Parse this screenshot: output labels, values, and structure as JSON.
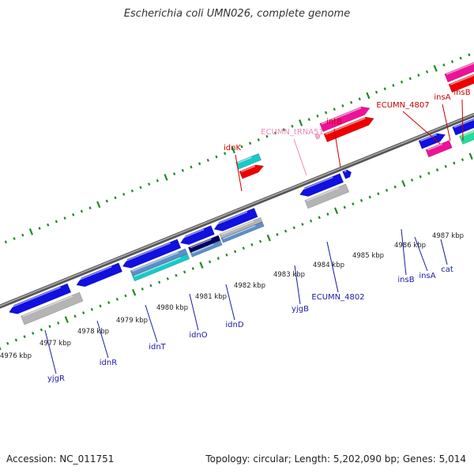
{
  "title": "Escherichia coli UMN026, complete genome",
  "footer": {
    "accession": "Accession: NC_011751",
    "summary": "Topology: circular; Length: 5,202,090 bp; Genes: 5,014"
  },
  "colors": {
    "backbone": "#7a7a7a",
    "dotted_track": "#1f8a1f",
    "forward_label": "#cc0000",
    "reverse_label": "#1a1aa6",
    "trna_label": "#ee88bb",
    "cds_blue": "#1010e0",
    "cds_gray": "#b4b4b4",
    "cds_cyan": "#18c8c8",
    "cds_red": "#ee0000",
    "cds_magenta": "#ee1199",
    "cds_mint": "#22dd99",
    "cds_navy": "#000060",
    "cds_steel": "#5b8fc8"
  },
  "kbp_ticks": [
    "4976 kbp",
    "4977 kbp",
    "4978 kbp",
    "4979 kbp",
    "4980 kbp",
    "4981 kbp",
    "4982 kbp",
    "4983 kbp",
    "4984 kbp",
    "4985 kbp",
    "4986 kbp",
    "4987 kbp"
  ],
  "forward_genes": [
    "idnK",
    "ECUMN_tRNA51",
    "intB",
    "ECUMN_4807",
    "insA",
    "insB"
  ],
  "reverse_genes": [
    "yjgR",
    "idnR",
    "idnT",
    "idnO",
    "idnD",
    "yjgB",
    "ECUMN_4802",
    "insB",
    "insA",
    "cat"
  ]
}
